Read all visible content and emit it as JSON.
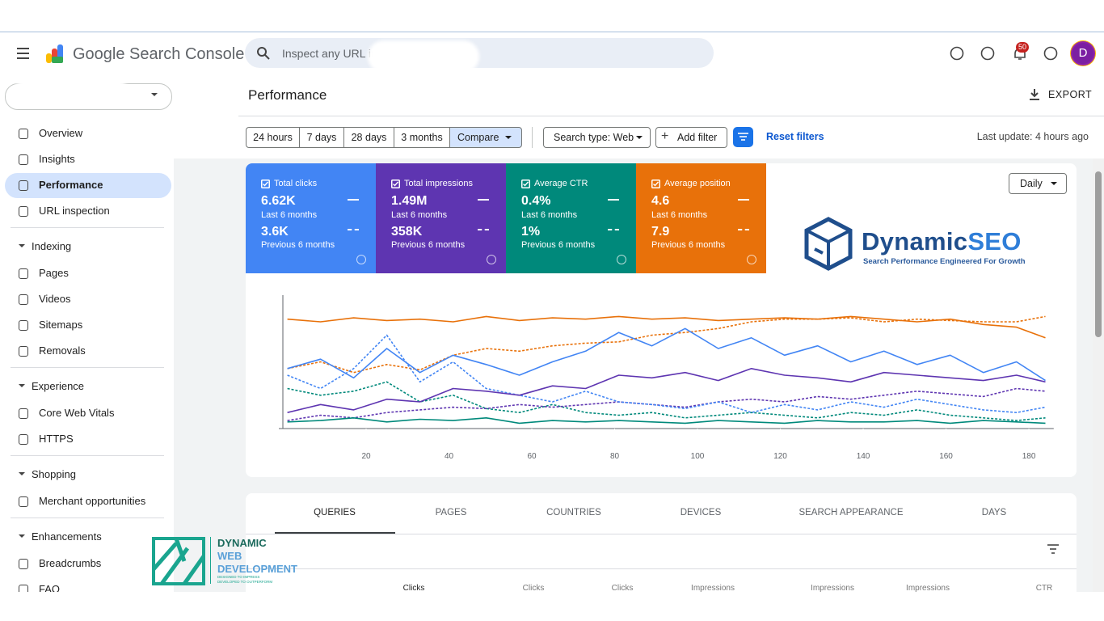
{
  "header": {
    "product": "Google Search Console",
    "search_placeholder": "Inspect any URL in",
    "notifications": "50",
    "avatar": "D"
  },
  "sidebar": {
    "nav": [
      "Overview",
      "Insights",
      "Performance",
      "URL inspection"
    ],
    "active": "Performance",
    "sections": [
      {
        "title": "Indexing",
        "items": [
          "Pages",
          "Videos",
          "Sitemaps",
          "Removals"
        ]
      },
      {
        "title": "Experience",
        "items": [
          "Core Web Vitals",
          "HTTPS"
        ]
      },
      {
        "title": "Shopping",
        "items": [
          "Merchant opportunities"
        ]
      },
      {
        "title": "Enhancements",
        "items": [
          "Breadcrumbs",
          "FAQ"
        ]
      }
    ]
  },
  "page_title": "Performance",
  "export": "EXPORT",
  "filters": {
    "ranges": [
      "24 hours",
      "7 days",
      "28 days",
      "3 months"
    ],
    "compare": "Compare",
    "search_type": "Search type: Web",
    "add_filter": "Add filter",
    "reset": "Reset filters",
    "last_update": "Last update: 4 hours ago"
  },
  "metrics": [
    {
      "label": "Total clicks",
      "value": "6.62K",
      "period": "Last 6 months",
      "prev_value": "3.6K",
      "prev_period": "Previous 6 months",
      "color": "#4285f4"
    },
    {
      "label": "Total impressions",
      "value": "1.49M",
      "period": "Last 6 months",
      "prev_value": "358K",
      "prev_period": "Previous 6 months",
      "color": "#5e35b1"
    },
    {
      "label": "Average CTR",
      "value": "0.4%",
      "period": "Last 6 months",
      "prev_value": "1%",
      "prev_period": "Previous 6 months",
      "color": "#00897b"
    },
    {
      "label": "Average position",
      "value": "4.6",
      "period": "Last 6 months",
      "prev_value": "7.9",
      "prev_period": "Previous 6 months",
      "color": "#e8710a"
    }
  ],
  "granularity": "Daily",
  "logo": {
    "name_a": "Dynamic",
    "name_b": "SEO",
    "tagline": "Search Performance Engineered For Growth"
  },
  "chart_data": {
    "type": "line",
    "x": [
      1,
      9,
      17,
      25,
      33,
      41,
      49,
      57,
      65,
      73,
      81,
      89,
      97,
      105,
      113,
      121,
      129,
      137,
      145,
      153,
      161,
      169,
      177,
      184
    ],
    "xlim": [
      0,
      186
    ],
    "xticks": [
      20,
      40,
      60,
      80,
      100,
      120,
      140,
      160,
      180
    ],
    "ylim": [
      0,
      100
    ],
    "series": [
      {
        "color": "#e8710a",
        "dashed": true,
        "values": [
          45,
          50,
          42,
          48,
          44,
          55,
          60,
          58,
          62,
          64,
          65,
          70,
          72,
          75,
          80,
          82,
          82,
          83,
          80,
          82,
          81,
          80,
          80,
          84
        ]
      },
      {
        "color": "#00897b",
        "dashed": true,
        "values": [
          30,
          25,
          28,
          35,
          20,
          25,
          15,
          12,
          18,
          12,
          10,
          12,
          8,
          10,
          12,
          10,
          8,
          12,
          10,
          14,
          10,
          8,
          6,
          8
        ]
      },
      {
        "color": "#5e35b1",
        "dashed": true,
        "values": [
          6,
          10,
          8,
          12,
          14,
          16,
          15,
          18,
          16,
          18,
          20,
          18,
          16,
          20,
          22,
          20,
          24,
          22,
          25,
          28,
          26,
          24,
          30,
          28
        ]
      },
      {
        "color": "#4285f4",
        "dashed": true,
        "values": [
          40,
          30,
          45,
          70,
          35,
          50,
          30,
          25,
          20,
          28,
          20,
          18,
          15,
          20,
          12,
          18,
          14,
          20,
          16,
          22,
          18,
          14,
          12,
          16
        ]
      },
      {
        "color": "#00897b",
        "dashed": false,
        "values": [
          5,
          6,
          8,
          5,
          7,
          6,
          8,
          4,
          6,
          5,
          6,
          5,
          4,
          6,
          5,
          4,
          6,
          5,
          5,
          6,
          4,
          6,
          5,
          4
        ]
      },
      {
        "color": "#5e35b1",
        "dashed": false,
        "values": [
          12,
          18,
          14,
          22,
          20,
          30,
          28,
          25,
          32,
          30,
          40,
          38,
          42,
          36,
          45,
          40,
          38,
          35,
          42,
          40,
          38,
          36,
          40,
          35
        ]
      },
      {
        "color": "#4285f4",
        "dashed": false,
        "values": [
          45,
          52,
          38,
          60,
          42,
          55,
          48,
          40,
          50,
          58,
          72,
          62,
          75,
          60,
          68,
          55,
          62,
          50,
          58,
          48,
          55,
          42,
          50,
          36
        ]
      },
      {
        "color": "#e8710a",
        "dashed": false,
        "values": [
          82,
          80,
          83,
          81,
          82,
          80,
          84,
          81,
          83,
          82,
          84,
          82,
          83,
          81,
          82,
          83,
          82,
          84,
          82,
          80,
          82,
          78,
          76,
          68
        ]
      }
    ]
  },
  "tabs": [
    "QUERIES",
    "PAGES",
    "COUNTRIES",
    "DEVICES",
    "SEARCH APPEARANCE",
    "DAYS"
  ],
  "columns": [
    "Clicks",
    "Clicks",
    "Clicks",
    "Impressions",
    "Impressions",
    "Impressions",
    "CTR"
  ],
  "watermark": {
    "lines": [
      "DYNAMIC",
      "WEB",
      "DEVELOPMENT"
    ],
    "tagline": [
      "DESIGNED TO IMPRESS",
      "DEVELOPED TO OUTPERFORM"
    ]
  }
}
